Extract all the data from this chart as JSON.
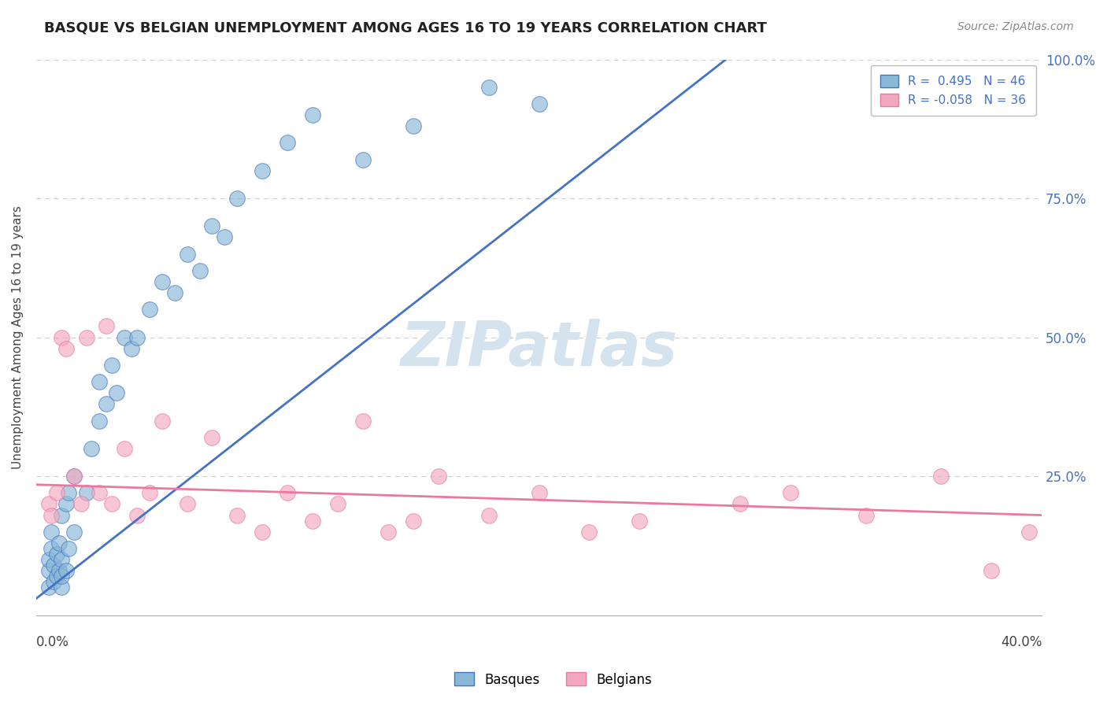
{
  "title": "BASQUE VS BELGIAN UNEMPLOYMENT AMONG AGES 16 TO 19 YEARS CORRELATION CHART",
  "source": "Source: ZipAtlas.com",
  "ylabel": "Unemployment Among Ages 16 to 19 years",
  "xlim": [
    0.0,
    0.4
  ],
  "ylim": [
    0.0,
    1.0
  ],
  "ytick_values": [
    0.0,
    0.25,
    0.5,
    0.75,
    1.0
  ],
  "right_ytick_labels": [
    "25.0%",
    "50.0%",
    "75.0%",
    "100.0%"
  ],
  "right_ytick_values": [
    0.25,
    0.5,
    0.75,
    1.0
  ],
  "basque_R": 0.495,
  "basque_N": 46,
  "belgian_R": -0.058,
  "belgian_N": 36,
  "blue_color": "#89b8d8",
  "pink_color": "#f4a8bf",
  "blue_line_color": "#4472c4",
  "pink_line_color": "#e87aa0",
  "legend_blue_label": "R =  0.495   N = 46",
  "legend_pink_label": "R = -0.058   N = 36",
  "basque_x": [
    0.005,
    0.005,
    0.005,
    0.006,
    0.006,
    0.007,
    0.007,
    0.008,
    0.008,
    0.009,
    0.009,
    0.01,
    0.01,
    0.01,
    0.01,
    0.012,
    0.012,
    0.013,
    0.013,
    0.015,
    0.015,
    0.02,
    0.022,
    0.025,
    0.025,
    0.028,
    0.03,
    0.032,
    0.035,
    0.038,
    0.04,
    0.045,
    0.05,
    0.055,
    0.06,
    0.065,
    0.07,
    0.075,
    0.08,
    0.09,
    0.1,
    0.11,
    0.13,
    0.15,
    0.18,
    0.2
  ],
  "basque_y": [
    0.05,
    0.08,
    0.1,
    0.12,
    0.15,
    0.06,
    0.09,
    0.07,
    0.11,
    0.08,
    0.13,
    0.05,
    0.07,
    0.1,
    0.18,
    0.08,
    0.2,
    0.12,
    0.22,
    0.15,
    0.25,
    0.22,
    0.3,
    0.35,
    0.42,
    0.38,
    0.45,
    0.4,
    0.5,
    0.48,
    0.5,
    0.55,
    0.6,
    0.58,
    0.65,
    0.62,
    0.7,
    0.68,
    0.75,
    0.8,
    0.85,
    0.9,
    0.82,
    0.88,
    0.95,
    0.92
  ],
  "belgian_x": [
    0.005,
    0.006,
    0.008,
    0.01,
    0.012,
    0.015,
    0.018,
    0.02,
    0.025,
    0.028,
    0.03,
    0.035,
    0.04,
    0.045,
    0.05,
    0.06,
    0.07,
    0.08,
    0.09,
    0.1,
    0.11,
    0.12,
    0.13,
    0.14,
    0.15,
    0.16,
    0.18,
    0.2,
    0.22,
    0.24,
    0.28,
    0.3,
    0.33,
    0.36,
    0.38,
    0.395
  ],
  "belgian_y": [
    0.2,
    0.18,
    0.22,
    0.5,
    0.48,
    0.25,
    0.2,
    0.5,
    0.22,
    0.52,
    0.2,
    0.3,
    0.18,
    0.22,
    0.35,
    0.2,
    0.32,
    0.18,
    0.15,
    0.22,
    0.17,
    0.2,
    0.35,
    0.15,
    0.17,
    0.25,
    0.18,
    0.22,
    0.15,
    0.17,
    0.2,
    0.22,
    0.18,
    0.25,
    0.08,
    0.15
  ],
  "background_color": "#ffffff",
  "grid_color": "#cccccc",
  "watermark_color": "#d5e3ef"
}
